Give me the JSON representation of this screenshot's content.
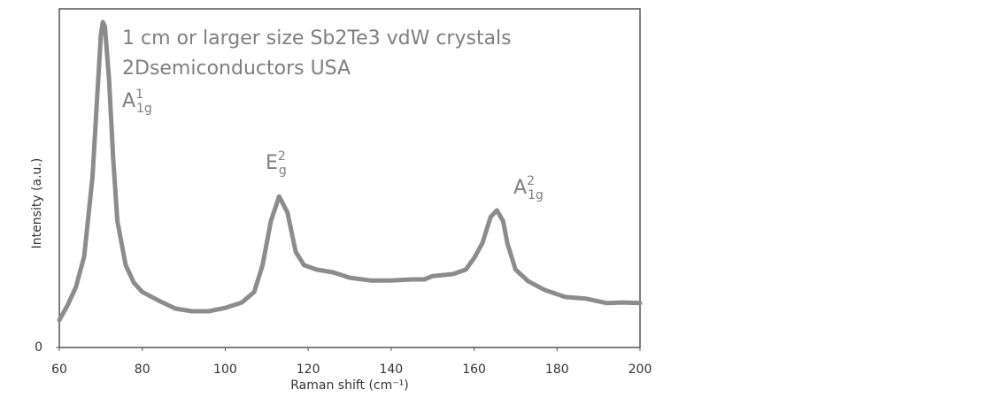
{
  "chart_data": {
    "type": "line",
    "title": "1 cm or larger size Sb2Te3 vdW crystals",
    "subtitle": "2Dsemiconductors USA",
    "x_label": "Raman shift (cm⁻¹)",
    "y_label": "Intensity (a.u.)",
    "annotations": [
      {
        "text": "A",
        "sup": "1",
        "sub": "1g"
      },
      {
        "text": "E",
        "sup": "2",
        "sub": "g"
      },
      {
        "text": "A",
        "sup": "2",
        "sub": "1g"
      }
    ],
    "x": [
      60,
      62,
      64,
      66,
      68,
      69,
      70,
      70.5,
      71,
      72,
      73,
      74,
      76,
      78,
      80,
      84,
      88,
      92,
      96,
      100,
      104,
      107,
      109,
      111,
      113,
      115,
      117,
      119,
      122,
      126,
      130,
      135,
      140,
      145,
      148,
      150,
      155,
      158,
      160,
      162,
      164,
      165.5,
      167,
      168,
      170,
      173,
      177,
      182,
      187,
      192,
      196,
      200
    ],
    "values": [
      8.1,
      12.5,
      17.8,
      26.9,
      50.4,
      71.3,
      92.2,
      96.1,
      94.8,
      79.1,
      55.6,
      37.3,
      24.3,
      19.1,
      16.4,
      13.8,
      11.5,
      10.7,
      10.7,
      11.7,
      13.3,
      16.4,
      24.3,
      37.3,
      44.6,
      39.9,
      28.2,
      24.3,
      23.0,
      22.2,
      20.6,
      19.8,
      19.8,
      20.1,
      20.1,
      21.1,
      21.7,
      23.0,
      26.4,
      30.8,
      38.6,
      40.5,
      37.3,
      30.8,
      23.0,
      19.6,
      17.0,
      14.9,
      14.4,
      13.1,
      13.3,
      13.1
    ],
    "color": "#8c8c8c",
    "xlim": [
      60,
      200
    ],
    "xticks": [
      60,
      80,
      100,
      120,
      140,
      160,
      180,
      200
    ],
    "ylim": [
      0,
      100
    ],
    "yticks": [
      0
    ]
  }
}
